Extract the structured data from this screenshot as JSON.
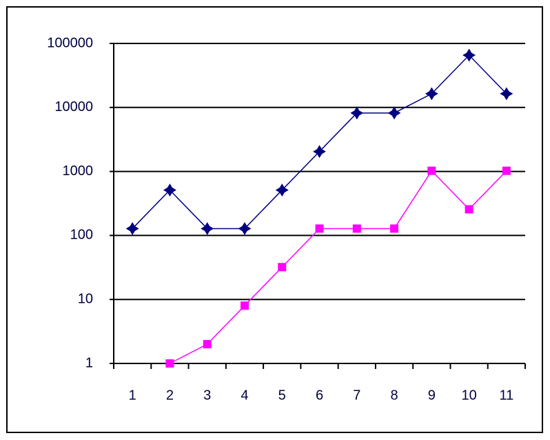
{
  "chart_data": {
    "type": "line",
    "log": true,
    "grid": true,
    "categories": [
      "1",
      "2",
      "3",
      "4",
      "5",
      "6",
      "7",
      "8",
      "9",
      "10",
      "11"
    ],
    "series": [
      {
        "color": "#000080",
        "marker": "star",
        "values": [
          128,
          512,
          128,
          128,
          512,
          2048,
          8192,
          8192,
          16384,
          65536,
          16384
        ]
      },
      {
        "color": "#ff00ff",
        "marker": "square",
        "values": [
          null,
          1,
          2,
          8,
          32,
          128,
          128,
          128,
          1024,
          256,
          1024
        ]
      }
    ],
    "ylim": [
      1,
      100000
    ],
    "yticks": [
      1,
      10,
      100,
      1000,
      10000,
      100000
    ]
  }
}
